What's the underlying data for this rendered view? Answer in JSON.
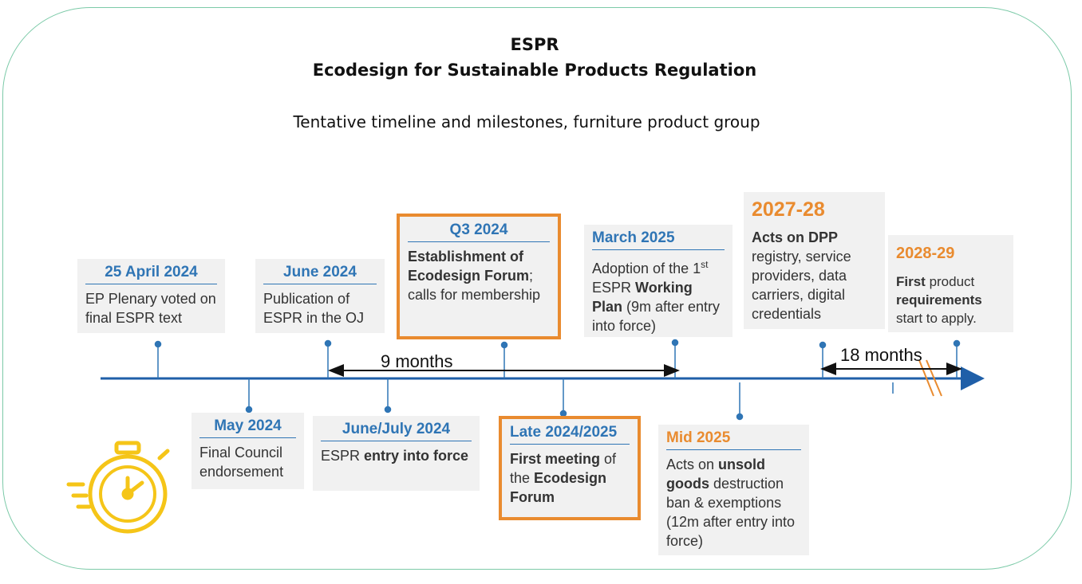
{
  "header": {
    "title_line1": "ESPR",
    "title_line2": "Ecodesign for Sustainable Products Regulation",
    "subtitle": "Tentative timeline and milestones, furniture product group"
  },
  "milestones": {
    "apr2024": {
      "date": "25 April 2024",
      "text": "EP Plenary voted on final ESPR text"
    },
    "may2024": {
      "date": "May 2024",
      "text": "Final Council endorsement"
    },
    "jun2024": {
      "date": "June 2024",
      "text": "Publication of ESPR in the OJ"
    },
    "junjul2024": {
      "date": "June/July 2024",
      "text_a": "ESPR ",
      "text_b": "entry into force"
    },
    "q32024": {
      "date": "Q3 2024",
      "text_a": "Establishment of Ecodesign Forum",
      "text_b": "; calls for membership"
    },
    "late2024": {
      "date": "Late 2024/2025",
      "text_a": "First meeting",
      "text_b": " of the ",
      "text_c": "Ecodesign Forum"
    },
    "mar2025": {
      "date": "March 2025",
      "text_a": "Adoption of the 1",
      "text_sup": "st",
      "text_b": " ESPR ",
      "text_c": "Working Plan",
      "text_d": " (9m after entry into force)"
    },
    "mid2025": {
      "date": "Mid 2025",
      "text_a": "Acts on ",
      "text_b": "unsold goods",
      "text_c": " destruction ban & exemptions (12m after entry into force)"
    },
    "y2027": {
      "date": "2027-28",
      "text_a": "Acts on DPP",
      "text_b": " registry, service providers, data carriers, digital credentials"
    },
    "y2028": {
      "date": "2028-29",
      "text_a": "First",
      "text_b": " product ",
      "text_c": "requirements",
      "text_d": " start to apply."
    }
  },
  "spans": {
    "nine": "9 months",
    "eighteen": "18 months"
  },
  "colors": {
    "accent_blue": "#2f75b5",
    "accent_orange": "#e98b2f",
    "axis": "#1f5fa8",
    "icon": "#f5c518"
  },
  "icons": {
    "timer": "stopwatch-icon"
  }
}
